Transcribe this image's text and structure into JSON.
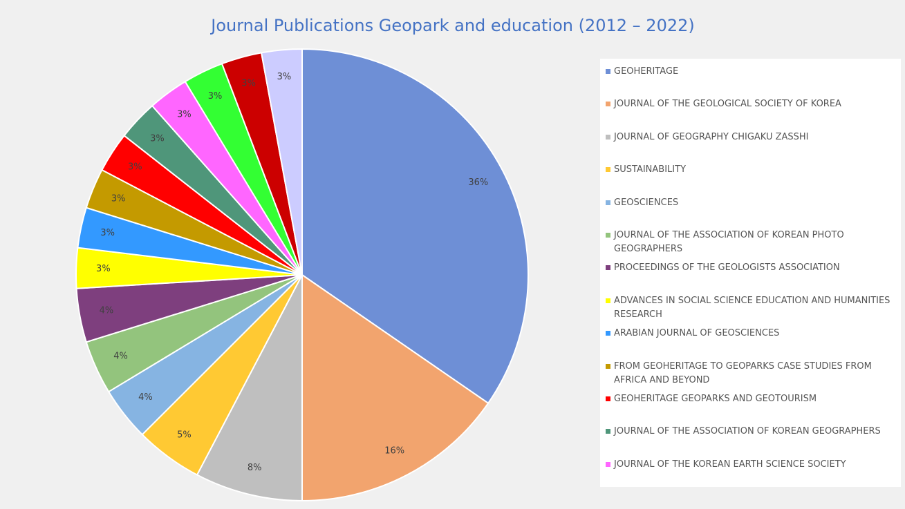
{
  "chart_data": {
    "type": "pie",
    "title": "Journal Publications Geopark and education (2012 – 2022)",
    "categories": [
      "GEOHERITAGE",
      "JOURNAL OF THE GEOLOGICAL SOCIETY OF KOREA",
      "JOURNAL OF GEOGRAPHY CHIGAKU ZASSHI",
      "SUSTAINABILITY",
      "GEOSCIENCES",
      "JOURNAL OF THE ASSOCIATION OF KOREAN PHOTO GEOGRAPHERS",
      "PROCEEDINGS OF THE GEOLOGISTS ASSOCIATION",
      "ADVANCES IN SOCIAL SCIENCE EDUCATION AND HUMANITIES RESEARCH",
      "ARABIAN JOURNAL OF GEOSCIENCES",
      "FROM GEOHERITAGE TO GEOPARKS CASE STUDIES FROM AFRICA AND BEYOND",
      "GEOHERITAGE GEOPARKS AND GEOTOURISM",
      "JOURNAL OF THE ASSOCIATION OF KOREAN GEOGRAPHERS",
      "JOURNAL OF THE KOREAN EARTH SCIENCE SOCIETY",
      null,
      null,
      null
    ],
    "values": [
      36,
      16,
      8,
      5,
      4,
      4,
      4,
      3,
      3,
      3,
      3,
      3,
      3,
      3,
      3,
      3
    ],
    "value_labels": [
      "36%",
      "16%",
      "8%",
      "5%",
      "4%",
      "4%",
      "4%",
      "3%",
      "3%",
      "3%",
      "3%",
      "3%",
      "3%",
      "3%",
      "3%",
      "3%"
    ],
    "colors": [
      "#6e8fd6",
      "#f2a46e",
      "#bfbfbf",
      "#ffc933",
      "#86b4e2",
      "#93c47d",
      "#7e3f7e",
      "#ffff00",
      "#3399ff",
      "#c49a00",
      "#ff0000",
      "#4f967a",
      "#ff66ff",
      "#33ff33",
      "#cc0000",
      "#ccccff"
    ]
  }
}
